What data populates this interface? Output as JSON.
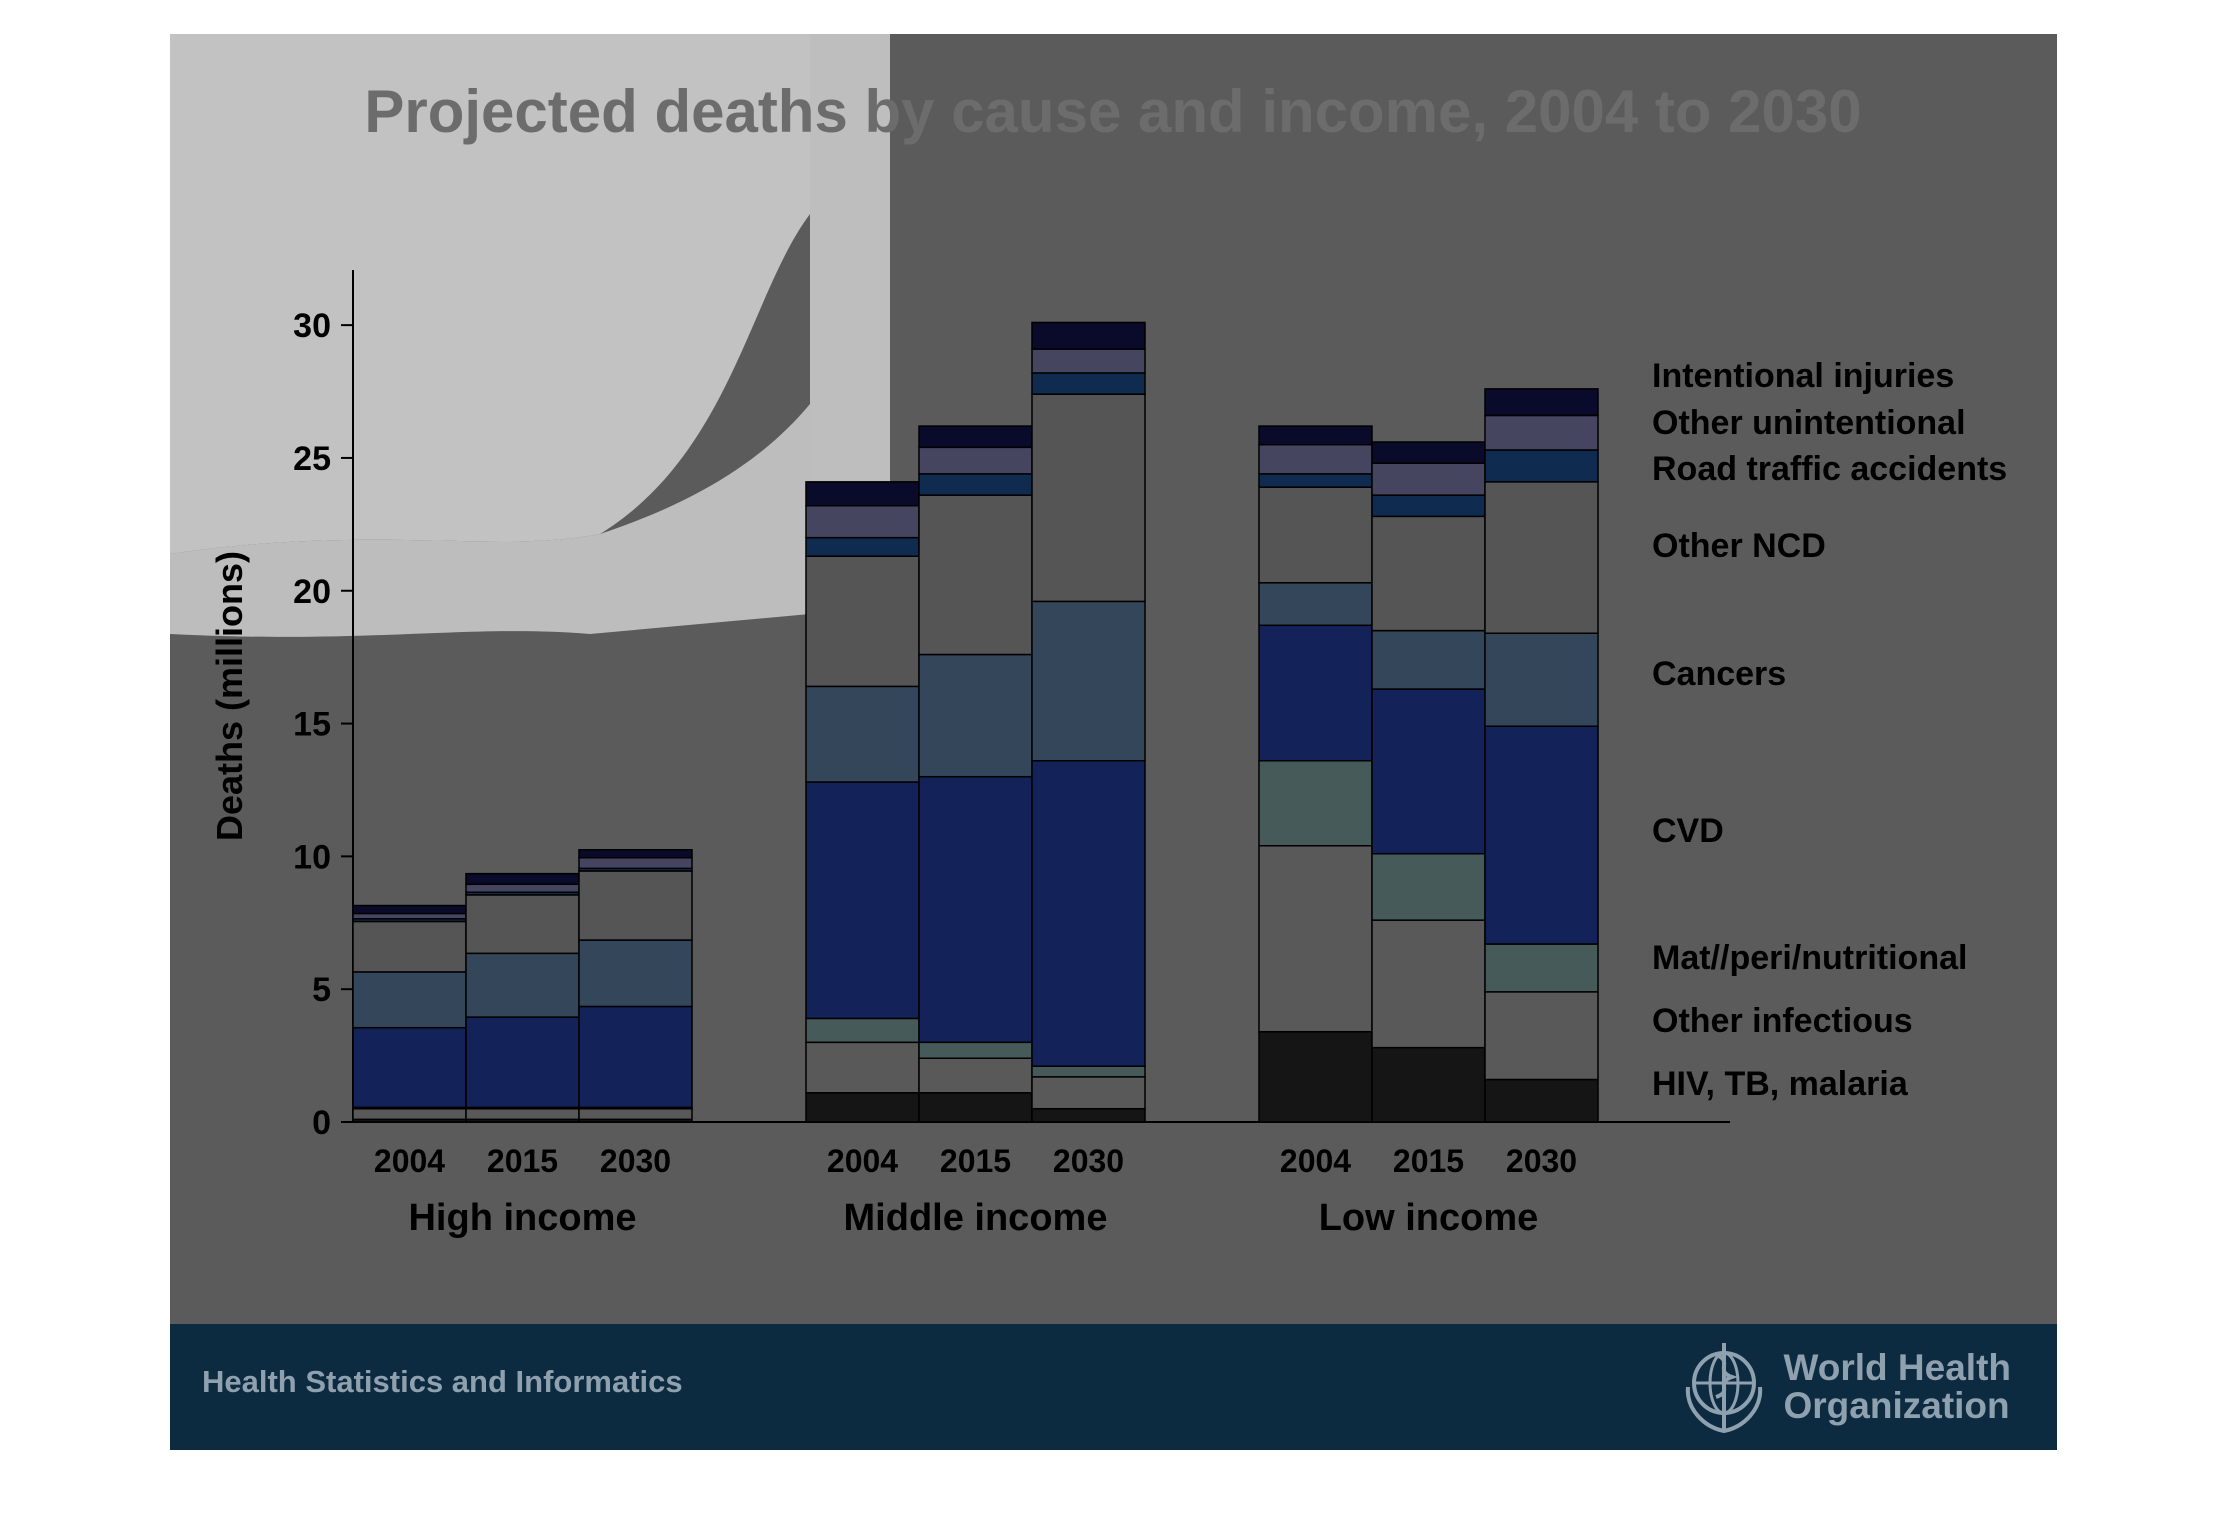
{
  "footer": {
    "text": "Health Statistics and Informatics",
    "org_line1": "World Health",
    "org_line2": "Organization",
    "logo_icon": "who-emblem-icon"
  },
  "colors": {
    "background": "#5b5b5b",
    "footer": "#0d2b40",
    "title": "#6c6c6c"
  },
  "chart_data": {
    "type": "bar",
    "stacked": true,
    "title": "Projected deaths by cause and income, 2004 to 2030",
    "ylabel": "Deaths (millions)",
    "xlabel": "",
    "ylim": [
      0,
      32
    ],
    "yticks": [
      0,
      5,
      10,
      15,
      20,
      25,
      30
    ],
    "grid": false,
    "legend_position": "right",
    "groups": [
      {
        "name": "High income",
        "years": [
          "2004",
          "2015",
          "2030"
        ]
      },
      {
        "name": "Middle income",
        "years": [
          "2004",
          "2015",
          "2030"
        ]
      },
      {
        "name": "Low income",
        "years": [
          "2004",
          "2015",
          "2030"
        ]
      }
    ],
    "series": [
      {
        "name": "HIV, TB, malaria",
        "color": "#151515",
        "values": [
          0.1,
          0.1,
          0.1,
          1.1,
          1.1,
          0.5,
          3.4,
          2.8,
          1.6
        ]
      },
      {
        "name": "Other infectious",
        "color": "#595959",
        "values": [
          0.4,
          0.4,
          0.4,
          1.9,
          1.3,
          1.2,
          7.0,
          4.8,
          3.3
        ]
      },
      {
        "name": "Mat//peri/nutritional",
        "color": "#465a5a",
        "values": [
          0.05,
          0.05,
          0.05,
          0.9,
          0.6,
          0.4,
          3.2,
          2.5,
          1.8
        ]
      },
      {
        "name": "CVD",
        "color": "#13235a",
        "values": [
          3.0,
          3.4,
          3.8,
          8.9,
          10.0,
          11.5,
          5.1,
          6.2,
          8.2
        ]
      },
      {
        "name": "Cancers",
        "color": "#34465a",
        "values": [
          2.1,
          2.4,
          2.5,
          3.6,
          4.6,
          6.0,
          1.6,
          2.2,
          3.5
        ]
      },
      {
        "name": "Other NCD",
        "color": "#555555",
        "values": [
          1.9,
          2.2,
          2.6,
          4.9,
          6.0,
          7.8,
          3.6,
          4.3,
          5.7
        ]
      },
      {
        "name": "Road traffic accidents",
        "color": "#0f2b4f",
        "values": [
          0.1,
          0.1,
          0.1,
          0.7,
          0.8,
          0.8,
          0.5,
          0.8,
          1.2
        ]
      },
      {
        "name": "Other unintentional",
        "color": "#454560",
        "values": [
          0.2,
          0.3,
          0.4,
          1.2,
          1.0,
          0.9,
          1.1,
          1.2,
          1.3
        ]
      },
      {
        "name": "Intentional injuries",
        "color": "#0a0a2a",
        "values": [
          0.3,
          0.4,
          0.3,
          0.9,
          0.8,
          1.0,
          0.7,
          0.8,
          1.0
        ]
      }
    ]
  }
}
